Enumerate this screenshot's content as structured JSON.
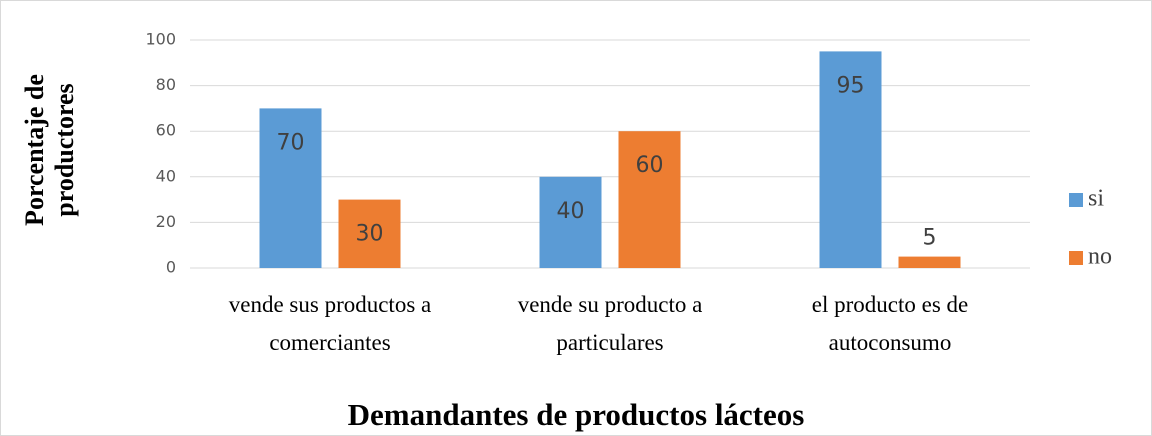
{
  "chart_data": {
    "type": "bar",
    "title": "Demandantes de productos lácteos",
    "y_label": "Porcentaje de productores",
    "categories": [
      "vende sus productos a comerciantes",
      "vende su producto a particulares",
      "el producto es de autoconsumo"
    ],
    "series": [
      {
        "name": "si",
        "color": "#5b9bd5",
        "values": [
          70,
          40,
          95
        ]
      },
      {
        "name": "no",
        "color": "#ed7d31",
        "values": [
          30,
          60,
          5
        ]
      }
    ],
    "ylim": [
      0,
      100
    ],
    "yticks": [
      0,
      20,
      40,
      60,
      80,
      100
    ],
    "grid": true,
    "legend": "right"
  }
}
